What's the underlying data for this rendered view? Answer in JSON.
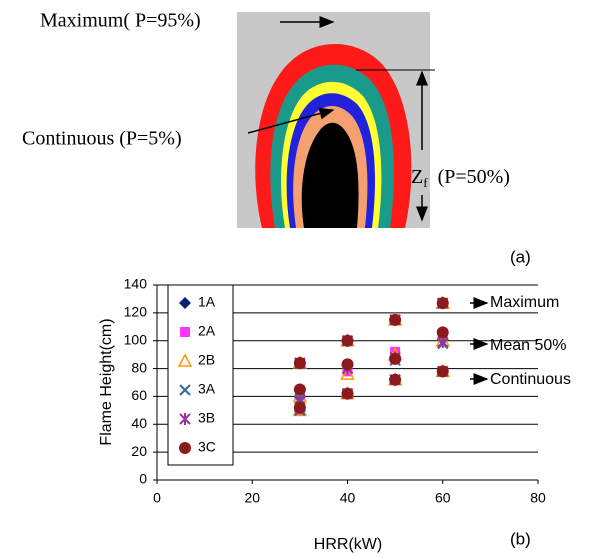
{
  "panel_a": {
    "max_label": "Maximum( P=95%)",
    "cont_label": "Continuous (P=5%)",
    "z_base": "Z",
    "z_sub": "f",
    "z_label": "(P=50%)",
    "tag": "(a)"
  },
  "chart_data": {
    "type": "scatter",
    "tag": "(b)",
    "xlabel": "HRR(kW)",
    "ylabel": "Flame Height(cm)",
    "xlim": [
      0,
      80
    ],
    "xticks": [
      0,
      20,
      40,
      60,
      80
    ],
    "ylim": [
      0,
      140
    ],
    "yticks": [
      0,
      20,
      40,
      60,
      80,
      100,
      120,
      140
    ],
    "grid": true,
    "legend": "upper left",
    "annotations": [
      "Maximum",
      "Mean 50%",
      "Continuous"
    ],
    "x": [
      30,
      30,
      30,
      40,
      40,
      40,
      50,
      50,
      50,
      60,
      60,
      60
    ],
    "series": [
      {
        "name": "1A",
        "color": "#0a1f7a",
        "marker": "diamond",
        "values": [
          84,
          64,
          50,
          100,
          82,
          62,
          115,
          88,
          72,
          127,
          101,
          78
        ]
      },
      {
        "name": "2A",
        "color": "#ff33ff",
        "marker": "square",
        "values": [
          84,
          62,
          50,
          100,
          78,
          62,
          115,
          92,
          72,
          127,
          103,
          78
        ]
      },
      {
        "name": "2B",
        "color": "#ff9900",
        "marker": "triangle",
        "values": [
          84,
          60,
          50,
          100,
          76,
          62,
          115,
          90,
          72,
          127,
          100,
          78
        ]
      },
      {
        "name": "3A",
        "color": "#336699",
        "marker": "x",
        "values": [
          84,
          58,
          50,
          100,
          80,
          62,
          115,
          86,
          72,
          127,
          98,
          78
        ]
      },
      {
        "name": "3B",
        "color": "#993399",
        "marker": "star",
        "values": [
          84,
          56,
          52,
          100,
          80,
          62,
          115,
          88,
          72,
          127,
          99,
          78
        ]
      },
      {
        "name": "3C",
        "color": "#8b1a1a",
        "marker": "circle",
        "values": [
          84,
          65,
          52,
          100,
          83,
          62,
          115,
          87,
          72,
          127,
          106,
          78
        ]
      }
    ]
  }
}
